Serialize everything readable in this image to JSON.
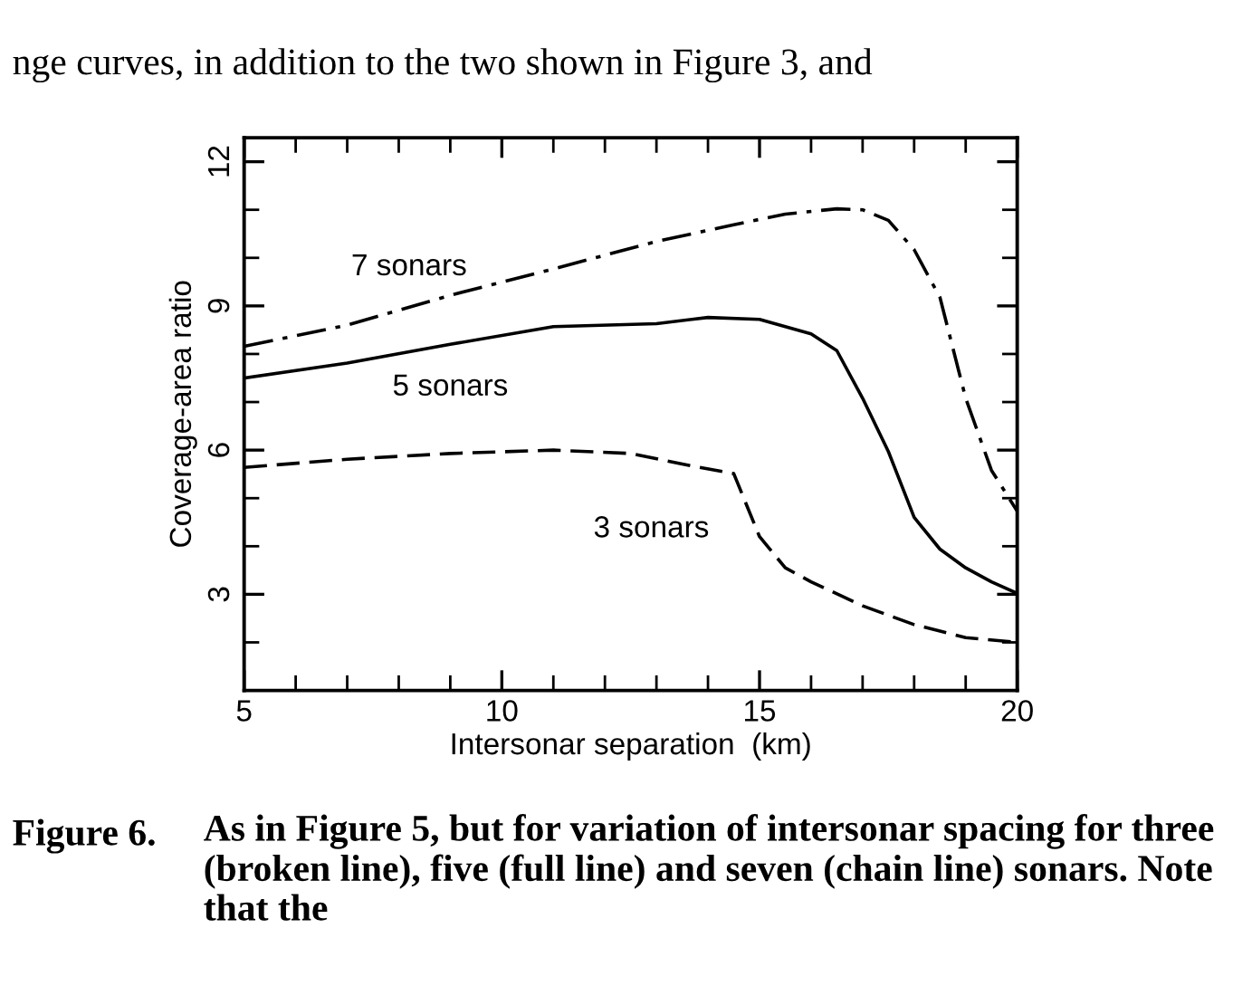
{
  "chart_data": {
    "type": "line",
    "xlabel": "Intersonar separation  (km)",
    "ylabel": "Coverage-area ratio",
    "xlim": [
      5,
      20
    ],
    "xticks": [
      5,
      10,
      15,
      20
    ],
    "ylim": [
      1,
      12.5
    ],
    "yticks": [
      3,
      6,
      9,
      12
    ],
    "grid": false,
    "legend": false,
    "series": [
      {
        "name": "7 sonars",
        "color": "#000000",
        "line_style": "dashdot",
        "x": [
          5,
          7,
          9,
          11,
          13,
          14.5,
          15.5,
          16.5,
          17,
          17.5,
          18,
          18.5,
          19,
          19.5,
          20
        ],
        "values": [
          8.16,
          8.6,
          9.22,
          9.77,
          10.34,
          10.69,
          10.91,
          11.02,
          11.0,
          10.78,
          10.17,
          9.18,
          7.08,
          5.58,
          4.73
        ]
      },
      {
        "name": "5 sonars",
        "color": "#000000",
        "line_style": "solid",
        "x": [
          5,
          7,
          9,
          11,
          13,
          14,
          15,
          16,
          16.5,
          17,
          17.5,
          18,
          18.5,
          19,
          19.5,
          20
        ],
        "values": [
          7.5,
          7.81,
          8.2,
          8.57,
          8.63,
          8.76,
          8.72,
          8.42,
          8.07,
          7.08,
          5.97,
          4.6,
          3.94,
          3.55,
          3.26,
          3.02
        ]
      },
      {
        "name": "3 sonars",
        "color": "#000000",
        "line_style": "dashed",
        "x": [
          5,
          7,
          9,
          11,
          12.5,
          13.5,
          14.5,
          15,
          15.5,
          16,
          17,
          18,
          19,
          20
        ],
        "values": [
          5.64,
          5.81,
          5.93,
          6.0,
          5.93,
          5.71,
          5.51,
          4.2,
          3.55,
          3.26,
          2.76,
          2.37,
          2.1,
          2.0
        ]
      }
    ],
    "annotations": [
      "nge curves, in addition to the two shown in Figure 3, and",
      "Figure 6.",
      "As in Figure 5, but for variation of intersonar spacing for three (broken line), five (full line) and seven (chain line) sonars. Note that the"
    ]
  }
}
